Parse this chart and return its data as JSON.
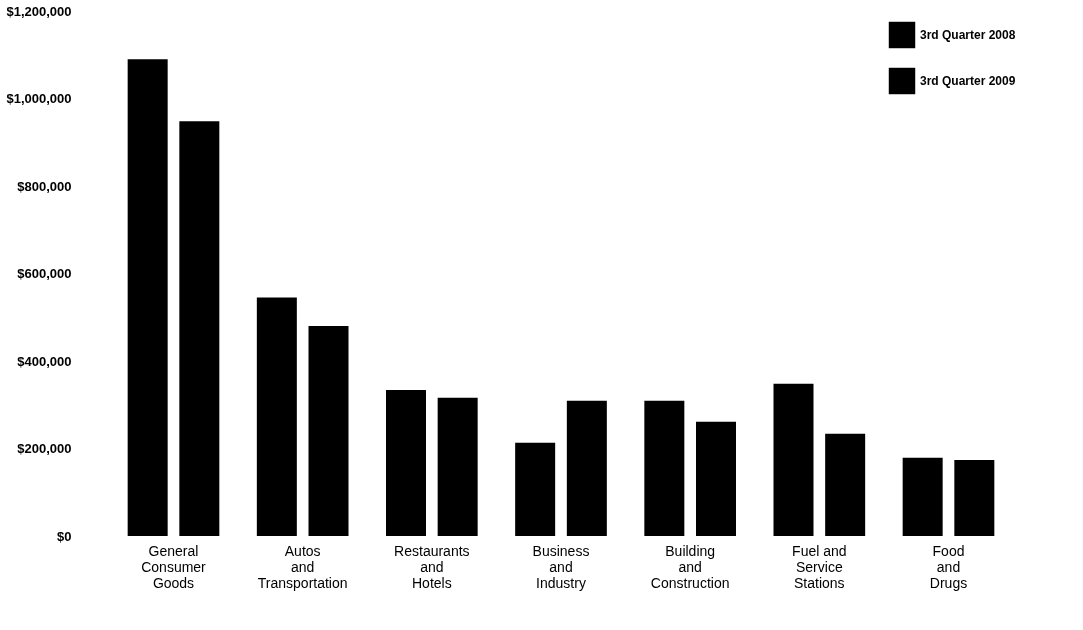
{
  "chart_data": {
    "type": "bar",
    "categories": [
      "General\nConsumer\nGoods",
      "Autos\nand\nTransportation",
      "Restaurants\nand\nHotels",
      "Business\nand\nIndustry",
      "Building\nand\nConstruction",
      "Fuel and\nService\nStations",
      "Food\nand\nDrugs"
    ],
    "series": [
      {
        "name": "3rd Quarter 2008",
        "color": "#000000",
        "values": [
          1090000,
          545000,
          334000,
          213000,
          309000,
          348000,
          179000
        ]
      },
      {
        "name": "3rd Quarter 2009",
        "color": "#000000",
        "values": [
          948000,
          480000,
          316000,
          309000,
          261000,
          234000,
          174000
        ]
      }
    ],
    "ylim": [
      0,
      1200000
    ],
    "yticks": [
      {
        "value": 0,
        "label": "$0"
      },
      {
        "value": 200000,
        "label": "$200,000"
      },
      {
        "value": 400000,
        "label": "$400,000"
      },
      {
        "value": 600000,
        "label": "$600,000"
      },
      {
        "value": 800000,
        "label": "$800,000"
      },
      {
        "value": 1000000,
        "label": "$1,000,000"
      },
      {
        "value": 1200000,
        "label": "$1,200,000"
      }
    ],
    "grid": false,
    "legend": "top right"
  }
}
